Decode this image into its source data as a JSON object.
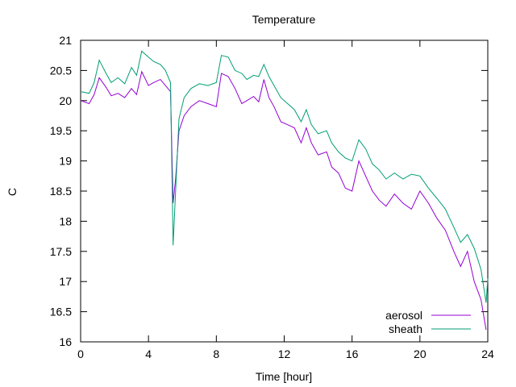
{
  "chart_data": {
    "type": "line",
    "title": "Temperature",
    "xlabel": "Time [hour]",
    "ylabel": "C",
    "xlim": [
      0,
      24
    ],
    "ylim": [
      16,
      21
    ],
    "xticks": [
      0,
      4,
      8,
      12,
      16,
      20,
      24
    ],
    "yticks": [
      16,
      16.5,
      17,
      17.5,
      18,
      18.5,
      19,
      19.5,
      20,
      20.5,
      21
    ],
    "grid": false,
    "legend_position": "bottom-right",
    "series": [
      {
        "name": "aerosol",
        "color": "#9400d3",
        "x": [
          0,
          0.5,
          0.8,
          1.1,
          1.5,
          1.8,
          2.2,
          2.6,
          3.0,
          3.3,
          3.6,
          4.0,
          4.3,
          4.7,
          5.0,
          5.3,
          5.45,
          5.6,
          5.8,
          6.1,
          6.5,
          7.0,
          7.5,
          8.0,
          8.3,
          8.7,
          9.1,
          9.5,
          9.8,
          10.2,
          10.5,
          10.8,
          11.1,
          11.4,
          11.8,
          12.2,
          12.6,
          13.0,
          13.3,
          13.6,
          14.0,
          14.5,
          14.8,
          15.2,
          15.6,
          16.0,
          16.4,
          16.8,
          17.2,
          17.6,
          18.0,
          18.5,
          19.0,
          19.5,
          20.0,
          20.5,
          21.0,
          21.5,
          22.0,
          22.4,
          22.8,
          23.2,
          23.6,
          23.9
        ],
        "y": [
          20.0,
          19.95,
          20.1,
          20.38,
          20.22,
          20.08,
          20.12,
          20.05,
          20.2,
          20.1,
          20.48,
          20.25,
          20.3,
          20.35,
          20.25,
          20.15,
          18.3,
          18.7,
          19.5,
          19.75,
          19.9,
          20.0,
          19.95,
          19.9,
          20.45,
          20.4,
          20.2,
          19.95,
          20.0,
          20.07,
          19.98,
          20.35,
          20.05,
          19.9,
          19.65,
          19.6,
          19.55,
          19.3,
          19.55,
          19.3,
          19.1,
          19.15,
          18.9,
          18.8,
          18.55,
          18.5,
          19.0,
          18.75,
          18.5,
          18.35,
          18.25,
          18.45,
          18.3,
          18.2,
          18.5,
          18.3,
          18.05,
          17.85,
          17.5,
          17.25,
          17.5,
          17.0,
          16.7,
          16.2
        ]
      },
      {
        "name": "sheath",
        "color": "#009e73",
        "x": [
          0,
          0.5,
          0.8,
          1.1,
          1.5,
          1.8,
          2.2,
          2.6,
          3.0,
          3.3,
          3.6,
          4.0,
          4.3,
          4.7,
          5.0,
          5.3,
          5.45,
          5.6,
          5.8,
          6.1,
          6.5,
          7.0,
          7.5,
          8.0,
          8.3,
          8.7,
          9.1,
          9.5,
          9.8,
          10.2,
          10.5,
          10.8,
          11.1,
          11.4,
          11.8,
          12.2,
          12.6,
          13.0,
          13.3,
          13.6,
          14.0,
          14.5,
          14.8,
          15.2,
          15.6,
          16.0,
          16.4,
          16.8,
          17.2,
          17.6,
          18.0,
          18.5,
          19.0,
          19.5,
          20.0,
          20.5,
          21.0,
          21.5,
          22.0,
          22.4,
          22.8,
          23.2,
          23.6,
          23.9,
          24.0
        ],
        "y": [
          20.15,
          20.12,
          20.3,
          20.67,
          20.45,
          20.3,
          20.38,
          20.28,
          20.55,
          20.42,
          20.82,
          20.72,
          20.65,
          20.6,
          20.5,
          20.3,
          17.6,
          18.5,
          19.7,
          20.05,
          20.2,
          20.28,
          20.25,
          20.3,
          20.75,
          20.72,
          20.5,
          20.45,
          20.35,
          20.42,
          20.4,
          20.6,
          20.4,
          20.25,
          20.05,
          19.95,
          19.85,
          19.65,
          19.85,
          19.6,
          19.45,
          19.5,
          19.3,
          19.15,
          19.05,
          19.0,
          19.35,
          19.2,
          18.95,
          18.85,
          18.7,
          18.8,
          18.7,
          18.78,
          18.75,
          18.55,
          18.38,
          18.2,
          17.9,
          17.65,
          17.78,
          17.55,
          17.2,
          16.65,
          17.05
        ]
      }
    ]
  }
}
